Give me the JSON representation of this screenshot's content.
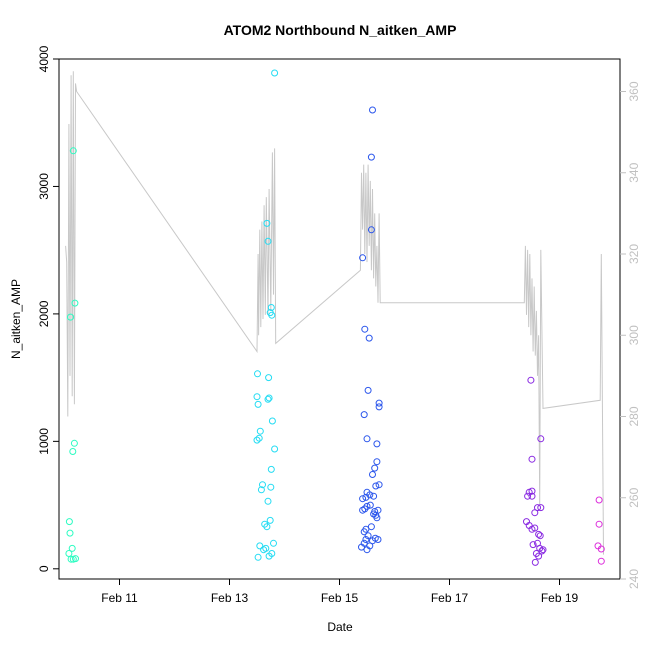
{
  "chart_data": {
    "type": "scatter",
    "title": "ATOM2 Northbound N_aitken_AMP",
    "xlabel": "Date",
    "ylabel": "N_aitken_AMP",
    "x_ticks": [
      {
        "label": "Feb 11",
        "value": 11
      },
      {
        "label": "Feb 13",
        "value": 13
      },
      {
        "label": "Feb 15",
        "value": 15
      },
      {
        "label": "Feb 17",
        "value": 17
      },
      {
        "label": "Feb 19",
        "value": 19
      }
    ],
    "xlim": [
      9.9,
      20.1
    ],
    "ylim": [
      -80,
      4000
    ],
    "y_ticks": [
      0,
      1000,
      2000,
      3000,
      4000
    ],
    "y2_lim": [
      240,
      368
    ],
    "y2_ticks": [
      240,
      260,
      280,
      300,
      320,
      340,
      360
    ],
    "grid": false,
    "legend": "none",
    "colors": {
      "line": "#c8c8c8",
      "axis": "#000000",
      "right_axis": "#c0c0c0"
    },
    "series": [
      {
        "kind": "points",
        "points": [
          [
            10.08,
            120,
            "#2dfcc2"
          ],
          [
            10.12,
            75,
            "#2dfcc2"
          ],
          [
            10.16,
            75,
            "#2dfcc2"
          ],
          [
            10.2,
            80,
            "#2dfcc2"
          ],
          [
            10.14,
            160,
            "#2dfcc2"
          ],
          [
            10.1,
            280,
            "#2dfcc2"
          ],
          [
            10.09,
            370,
            "#2dfcc2"
          ],
          [
            10.15,
            920,
            "#2dfcc2"
          ],
          [
            10.18,
            985,
            "#2dfcc2"
          ],
          [
            10.11,
            1975,
            "#2dfcc2"
          ],
          [
            10.19,
            2085,
            "#2dfcc2"
          ],
          [
            10.16,
            3280,
            "#2dfcc2"
          ],
          [
            13.52,
            90,
            "#24dcf3"
          ],
          [
            13.55,
            180,
            "#24dcf3"
          ],
          [
            13.62,
            150,
            "#24dcf3"
          ],
          [
            13.66,
            160,
            "#24dcf3"
          ],
          [
            13.72,
            100,
            "#24dcf3"
          ],
          [
            13.77,
            120,
            "#24dcf3"
          ],
          [
            13.8,
            200,
            "#24dcf3"
          ],
          [
            13.68,
            330,
            "#24dcf3"
          ],
          [
            13.64,
            350,
            "#24dcf3"
          ],
          [
            13.74,
            380,
            "#24dcf3"
          ],
          [
            13.7,
            530,
            "#24dcf3"
          ],
          [
            13.58,
            620,
            "#24dcf3"
          ],
          [
            13.6,
            660,
            "#24dcf3"
          ],
          [
            13.75,
            640,
            "#24dcf3"
          ],
          [
            13.76,
            780,
            "#24dcf3"
          ],
          [
            13.82,
            940,
            "#24dcf3"
          ],
          [
            13.5,
            1010,
            "#24dcf3"
          ],
          [
            13.54,
            1025,
            "#24dcf3"
          ],
          [
            13.56,
            1080,
            "#24dcf3"
          ],
          [
            13.78,
            1160,
            "#24dcf3"
          ],
          [
            13.52,
            1290,
            "#24dcf3"
          ],
          [
            13.5,
            1350,
            "#24dcf3"
          ],
          [
            13.7,
            1330,
            "#24dcf3"
          ],
          [
            13.72,
            1340,
            "#24dcf3"
          ],
          [
            13.51,
            1530,
            "#24dcf3"
          ],
          [
            13.71,
            1500,
            "#24dcf3"
          ],
          [
            13.77,
            1990,
            "#24dcf3"
          ],
          [
            13.74,
            2010,
            "#24dcf3"
          ],
          [
            13.76,
            2050,
            "#24dcf3"
          ],
          [
            13.7,
            2570,
            "#24dcf3"
          ],
          [
            13.68,
            2710,
            "#24dcf3"
          ],
          [
            13.82,
            3890,
            "#24dcf3"
          ],
          [
            15.4,
            170,
            "#2b56ec"
          ],
          [
            15.45,
            200,
            "#2b56ec"
          ],
          [
            15.5,
            150,
            "#2b56ec"
          ],
          [
            15.55,
            180,
            "#2b56ec"
          ],
          [
            15.48,
            230,
            "#2b56ec"
          ],
          [
            15.6,
            220,
            "#2b56ec"
          ],
          [
            15.65,
            240,
            "#2b56ec"
          ],
          [
            15.7,
            230,
            "#2b56ec"
          ],
          [
            15.52,
            260,
            "#2b56ec"
          ],
          [
            15.45,
            290,
            "#2b56ec"
          ],
          [
            15.48,
            310,
            "#2b56ec"
          ],
          [
            15.58,
            330,
            "#2b56ec"
          ],
          [
            15.68,
            400,
            "#2b56ec"
          ],
          [
            15.62,
            430,
            "#2b56ec"
          ],
          [
            15.64,
            450,
            "#2b56ec"
          ],
          [
            15.42,
            460,
            "#2b56ec"
          ],
          [
            15.46,
            470,
            "#2b56ec"
          ],
          [
            15.5,
            490,
            "#2b56ec"
          ],
          [
            15.56,
            500,
            "#2b56ec"
          ],
          [
            15.66,
            420,
            "#2b56ec"
          ],
          [
            15.7,
            460,
            "#2b56ec"
          ],
          [
            15.42,
            550,
            "#2b56ec"
          ],
          [
            15.48,
            560,
            "#2b56ec"
          ],
          [
            15.55,
            580,
            "#2b56ec"
          ],
          [
            15.62,
            570,
            "#2b56ec"
          ],
          [
            15.5,
            600,
            "#2b56ec"
          ],
          [
            15.66,
            650,
            "#2b56ec"
          ],
          [
            15.72,
            660,
            "#2b56ec"
          ],
          [
            15.6,
            740,
            "#2b56ec"
          ],
          [
            15.64,
            790,
            "#2b56ec"
          ],
          [
            15.68,
            840,
            "#2b56ec"
          ],
          [
            15.68,
            980,
            "#2b56ec"
          ],
          [
            15.5,
            1020,
            "#2b56ec"
          ],
          [
            15.45,
            1210,
            "#2b56ec"
          ],
          [
            15.72,
            1270,
            "#2b56ec"
          ],
          [
            15.72,
            1300,
            "#2b56ec"
          ],
          [
            15.52,
            1400,
            "#2b56ec"
          ],
          [
            15.54,
            1810,
            "#2b56ec"
          ],
          [
            15.46,
            1880,
            "#2b56ec"
          ],
          [
            15.42,
            2440,
            "#2b56ec"
          ],
          [
            15.58,
            2660,
            "#2b56ec"
          ],
          [
            15.58,
            3230,
            "#2b56ec"
          ],
          [
            15.6,
            3600,
            "#2b56ec"
          ],
          [
            18.4,
            370,
            "#8a2be2"
          ],
          [
            18.45,
            340,
            "#8a2be2"
          ],
          [
            18.5,
            310,
            "#8a2be2"
          ],
          [
            18.55,
            320,
            "#8a2be2"
          ],
          [
            18.62,
            270,
            "#8a2be2"
          ],
          [
            18.65,
            260,
            "#8a2be2"
          ],
          [
            18.52,
            190,
            "#8a2be2"
          ],
          [
            18.6,
            200,
            "#8a2be2"
          ],
          [
            18.64,
            160,
            "#8a2be2"
          ],
          [
            18.68,
            140,
            "#8a2be2"
          ],
          [
            18.58,
            120,
            "#8a2be2"
          ],
          [
            18.62,
            100,
            "#8a2be2"
          ],
          [
            18.56,
            50,
            "#8a2be2"
          ],
          [
            18.7,
            150,
            "#8a2be2"
          ],
          [
            18.55,
            440,
            "#8a2be2"
          ],
          [
            18.6,
            480,
            "#8a2be2"
          ],
          [
            18.66,
            480,
            "#8a2be2"
          ],
          [
            18.42,
            570,
            "#8a2be2"
          ],
          [
            18.45,
            600,
            "#8a2be2"
          ],
          [
            18.5,
            610,
            "#8a2be2"
          ],
          [
            18.5,
            570,
            "#8a2be2"
          ],
          [
            18.5,
            860,
            "#8a2be2"
          ],
          [
            18.66,
            1020,
            "#8a2be2"
          ],
          [
            18.48,
            1480,
            "#8a2be2"
          ],
          [
            19.72,
            540,
            "#dd2fdc"
          ],
          [
            19.72,
            350,
            "#dd2fdc"
          ],
          [
            19.7,
            180,
            "#dd2fdc"
          ],
          [
            19.76,
            155,
            "#dd2fdc"
          ],
          [
            19.76,
            60,
            "#dd2fdc"
          ]
        ]
      },
      {
        "kind": "line",
        "axis": "right",
        "points": [
          [
            10.02,
            322
          ],
          [
            10.04,
            318
          ],
          [
            10.06,
            280
          ],
          [
            10.08,
            352
          ],
          [
            10.1,
            290
          ],
          [
            10.12,
            364
          ],
          [
            10.14,
            285
          ],
          [
            10.16,
            365
          ],
          [
            10.18,
            283
          ],
          [
            10.2,
            362
          ],
          [
            10.22,
            360
          ],
          [
            13.5,
            296
          ],
          [
            13.52,
            320
          ],
          [
            13.53,
            300
          ],
          [
            13.55,
            326
          ],
          [
            13.57,
            302
          ],
          [
            13.59,
            328
          ],
          [
            13.61,
            304
          ],
          [
            13.63,
            332
          ],
          [
            13.65,
            305
          ],
          [
            13.67,
            334
          ],
          [
            13.7,
            305
          ],
          [
            13.72,
            336
          ],
          [
            13.75,
            306
          ],
          [
            13.78,
            345
          ],
          [
            13.8,
            310
          ],
          [
            13.82,
            346
          ],
          [
            13.84,
            298
          ],
          [
            15.38,
            316
          ],
          [
            15.4,
            340
          ],
          [
            15.42,
            326
          ],
          [
            15.44,
            342
          ],
          [
            15.46,
            320
          ],
          [
            15.48,
            340
          ],
          [
            15.5,
            318
          ],
          [
            15.52,
            342
          ],
          [
            15.54,
            322
          ],
          [
            15.56,
            338
          ],
          [
            15.58,
            316
          ],
          [
            15.6,
            336
          ],
          [
            15.62,
            314
          ],
          [
            15.64,
            330
          ],
          [
            15.66,
            312
          ],
          [
            15.68,
            322
          ],
          [
            15.7,
            308
          ],
          [
            15.72,
            330
          ],
          [
            15.74,
            308
          ],
          [
            18.36,
            308
          ],
          [
            18.38,
            322
          ],
          [
            18.4,
            305
          ],
          [
            18.42,
            321
          ],
          [
            18.44,
            302
          ],
          [
            18.46,
            320
          ],
          [
            18.48,
            300
          ],
          [
            18.5,
            314
          ],
          [
            18.52,
            296
          ],
          [
            18.54,
            312
          ],
          [
            18.56,
            295
          ],
          [
            18.58,
            306
          ],
          [
            18.6,
            290
          ],
          [
            18.62,
            300
          ],
          [
            18.64,
            258
          ],
          [
            18.66,
            321
          ],
          [
            18.7,
            282
          ],
          [
            19.74,
            284
          ],
          [
            19.76,
            320
          ],
          [
            19.8,
            246
          ]
        ]
      }
    ]
  }
}
